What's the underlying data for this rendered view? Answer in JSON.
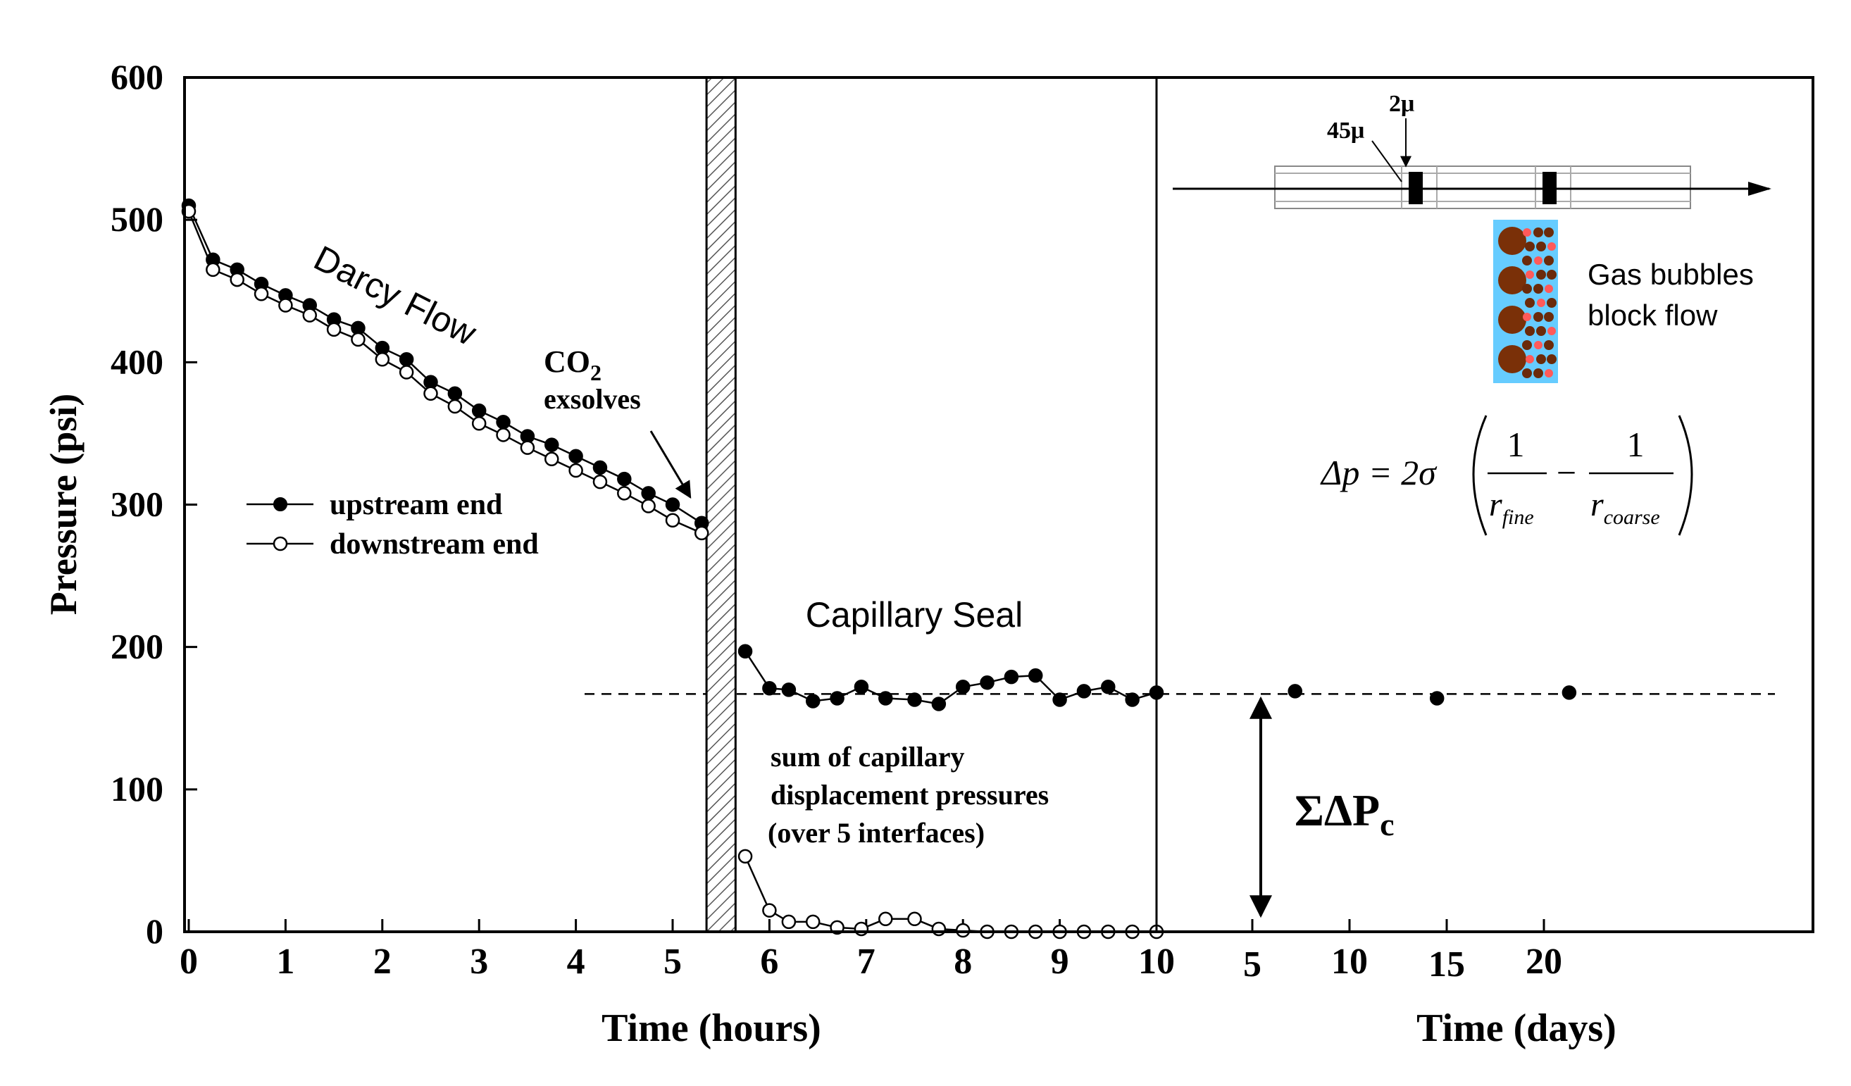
{
  "chart_data": {
    "type": "line",
    "ylabel": "Pressure (psi)",
    "ylim": [
      0,
      600
    ],
    "yticks": [
      "0",
      "100",
      "200",
      "300",
      "400",
      "500",
      "600"
    ],
    "hours_axis": {
      "xlabel": "Time (hours)",
      "xlim": [
        -0.05,
        10
      ],
      "ticks": [
        "0",
        "1",
        "2",
        "3",
        "4",
        "5",
        "6",
        "7",
        "8",
        "9",
        "10"
      ]
    },
    "days_axis": {
      "xlabel": "Time (days)",
      "ticks": [
        "5",
        "10",
        "15",
        "20"
      ]
    },
    "legend": {
      "upstream_label": "upstream end",
      "downstream_label": "downstream end",
      "position": "left-middle"
    },
    "series": [
      {
        "name": "upstream end",
        "marker": "filled",
        "segments": [
          {
            "x": [
              0,
              0.25,
              0.5,
              0.75,
              1.0,
              1.25,
              1.5,
              1.75,
              2.0,
              2.25,
              2.5,
              2.75,
              3.0,
              3.25,
              3.5,
              3.75,
              4.0,
              4.25,
              4.5,
              4.75,
              5.0,
              5.3
            ],
            "y": [
              510,
              472,
              465,
              455,
              447,
              440,
              430,
              424,
              410,
              402,
              386,
              378,
              366,
              358,
              348,
              342,
              334,
              326,
              318,
              308,
              300,
              287
            ]
          },
          {
            "x": [
              5.75,
              6.0,
              6.2,
              6.45,
              6.7,
              6.95,
              7.2,
              7.5,
              7.75,
              8.0,
              8.25,
              8.5,
              8.75,
              9.0,
              9.25,
              9.5,
              9.75,
              10.0
            ],
            "y": [
              197,
              171,
              170,
              162,
              164,
              172,
              164,
              163,
              160,
              172,
              175,
              179,
              180,
              163,
              169,
              172,
              163,
              168
            ]
          }
        ]
      },
      {
        "name": "downstream end",
        "marker": "open",
        "segments": [
          {
            "x": [
              0,
              0.25,
              0.5,
              0.75,
              1.0,
              1.25,
              1.5,
              1.75,
              2.0,
              2.25,
              2.5,
              2.75,
              3.0,
              3.25,
              3.5,
              3.75,
              4.0,
              4.25,
              4.5,
              4.75,
              5.0,
              5.3
            ],
            "y": [
              506,
              465,
              458,
              448,
              440,
              433,
              423,
              416,
              402,
              393,
              378,
              369,
              357,
              349,
              340,
              332,
              324,
              316,
              308,
              299,
              289,
              280
            ]
          },
          {
            "x": [
              5.75,
              6.0,
              6.2,
              6.45,
              6.7,
              6.95,
              7.2,
              7.5,
              7.75,
              8.0,
              8.25,
              8.5,
              8.75,
              9.0,
              9.25,
              9.5,
              9.75,
              10.0
            ],
            "y": [
              53,
              15,
              7,
              7,
              3,
              2,
              9,
              9,
              2,
              1,
              0,
              0,
              0,
              0,
              0,
              0,
              0,
              0
            ]
          }
        ]
      },
      {
        "name": "upstream end (days)",
        "marker": "filled",
        "x_days": [
          7.2,
          14.5,
          21.3
        ],
        "y": [
          169,
          164,
          168
        ]
      }
    ],
    "reference_line_y": 167,
    "shaded_interval_hours": [
      5.35,
      5.65
    ],
    "annotations": {
      "darcy_flow": "Darcy Flow",
      "co2_prefix": "CO",
      "co2_sub": "2",
      "exsolves": "exsolves",
      "capillary_seal": "Capillary Seal",
      "sum_line1": "sum of capillary",
      "sum_line2": "displacement pressures",
      "sum_line3": "(over 5 interfaces)",
      "sigma_dp": "ΣΔP",
      "sigma_sub": "c",
      "size_coarse": "45μ",
      "size_fine": "2μ",
      "gas_line1": "Gas bubbles",
      "gas_line2": "block flow",
      "eq_lhs": "Δp = 2σ",
      "eq_one": "1",
      "eq_r": "r",
      "eq_fine": "fine",
      "eq_coarse": "coarse",
      "eq_minus": "−"
    }
  }
}
